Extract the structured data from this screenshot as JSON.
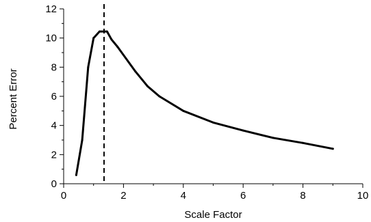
{
  "chart_data": {
    "type": "line",
    "title": "",
    "xlabel": "Scale Factor",
    "ylabel": "Percent Error",
    "xlim": [
      0,
      10
    ],
    "ylim": [
      0,
      12
    ],
    "xticks": [
      0,
      2,
      4,
      6,
      8,
      10
    ],
    "yticks": [
      0,
      2,
      4,
      6,
      8,
      10,
      12
    ],
    "grid": false,
    "legend": "none",
    "series": [
      {
        "x": [
          0.42,
          0.62,
          0.82,
          1.0,
          1.2,
          1.45,
          1.6,
          1.8,
          2.4,
          2.8,
          3.2,
          4.0,
          5.0,
          6.0,
          7.0,
          8.0,
          9.0
        ],
        "y": [
          0.6,
          3.0,
          8.0,
          10.0,
          10.45,
          10.45,
          9.9,
          9.4,
          7.7,
          6.7,
          6.0,
          5.0,
          4.2,
          3.65,
          3.15,
          2.8,
          2.4
        ],
        "color": "#000000"
      }
    ],
    "reference_line": {
      "x": 1.35,
      "style": "dashed",
      "color": "#000000"
    }
  }
}
